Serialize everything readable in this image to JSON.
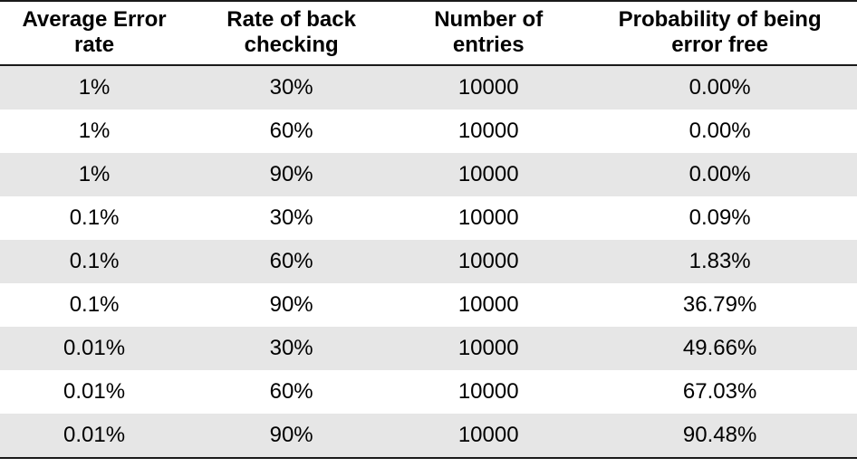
{
  "table": {
    "type": "table",
    "background_color": "#ffffff",
    "shaded_row_color": "#e6e6e6",
    "border_color": "#1a1a1a",
    "header_fontsize": 24,
    "cell_fontsize": 24,
    "font_family": "Century Gothic / geometric sans-serif",
    "columns": [
      {
        "label": "Average Error rate",
        "align": "center"
      },
      {
        "label": "Rate of back checking",
        "align": "center"
      },
      {
        "label": "Number of entries",
        "align": "center"
      },
      {
        "label": "Probability of being error free",
        "align": "center"
      }
    ],
    "rows": [
      {
        "avg_error_rate": "1%",
        "back_checking": "30%",
        "entries": "10000",
        "prob_error_free": "0.00%",
        "shaded": true
      },
      {
        "avg_error_rate": "1%",
        "back_checking": "60%",
        "entries": "10000",
        "prob_error_free": "0.00%",
        "shaded": false
      },
      {
        "avg_error_rate": "1%",
        "back_checking": "90%",
        "entries": "10000",
        "prob_error_free": "0.00%",
        "shaded": true
      },
      {
        "avg_error_rate": "0.1%",
        "back_checking": "30%",
        "entries": "10000",
        "prob_error_free": "0.09%",
        "shaded": false
      },
      {
        "avg_error_rate": "0.1%",
        "back_checking": "60%",
        "entries": "10000",
        "prob_error_free": "1.83%",
        "shaded": true
      },
      {
        "avg_error_rate": "0.1%",
        "back_checking": "90%",
        "entries": "10000",
        "prob_error_free": "36.79%",
        "shaded": false
      },
      {
        "avg_error_rate": "0.01%",
        "back_checking": "30%",
        "entries": "10000",
        "prob_error_free": "49.66%",
        "shaded": true
      },
      {
        "avg_error_rate": "0.01%",
        "back_checking": "60%",
        "entries": "10000",
        "prob_error_free": "67.03%",
        "shaded": false
      },
      {
        "avg_error_rate": "0.01%",
        "back_checking": "90%",
        "entries": "10000",
        "prob_error_free": "90.48%",
        "shaded": true
      }
    ]
  }
}
